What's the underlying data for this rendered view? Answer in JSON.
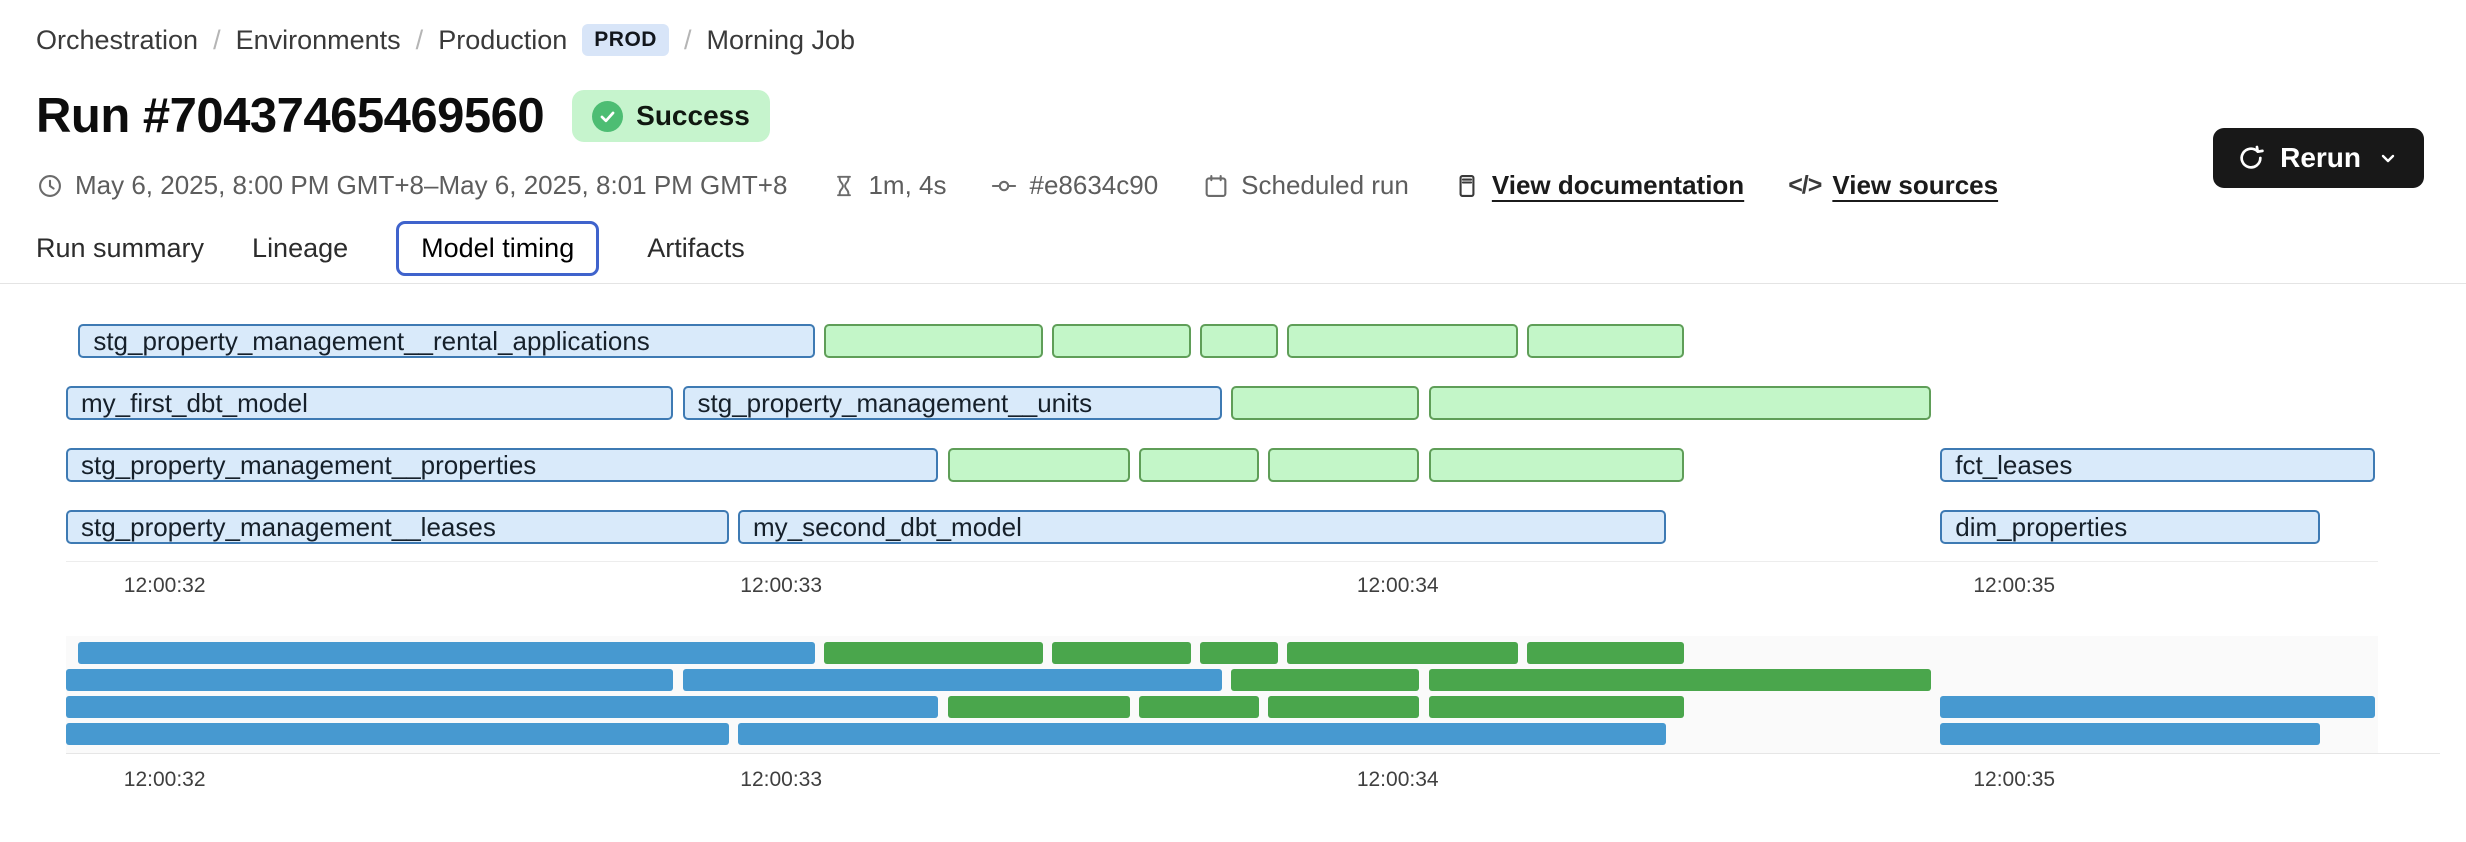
{
  "breadcrumb": {
    "items": [
      "Orchestration",
      "Environments",
      "Production",
      "Morning Job"
    ],
    "env_badge": "PROD",
    "separator": "/"
  },
  "header": {
    "title": "Run #70437465469560",
    "status_badge": "Success"
  },
  "toolbar": {
    "rerun_label": "Rerun"
  },
  "meta": {
    "time_range": "May 6, 2025, 8:00 PM GMT+8–May 6, 2025, 8:01 PM GMT+8",
    "duration": "1m, 4s",
    "commit": "#e8634c90",
    "trigger": "Scheduled run",
    "doc_link": "View documentation",
    "sources_link": "View sources",
    "code_glyph": "</>"
  },
  "tabs": [
    {
      "label": "Run summary",
      "active": false
    },
    {
      "label": "Lineage",
      "active": false
    },
    {
      "label": "Model timing",
      "active": true
    },
    {
      "label": "Artifacts",
      "active": false
    }
  ],
  "icons": {
    "clock-icon": "◷",
    "hourglass-icon": "⧖",
    "commit-icon": "-o-",
    "calendar-icon": "▦",
    "document-icon": "▤",
    "code-icon": "</>",
    "refresh-icon": "⟳",
    "chevron-down-icon": "∨",
    "check-icon": "✓"
  },
  "colors": {
    "blue_fill": "#d9eafa",
    "blue_border": "#3e7ab3",
    "green_fill": "#c3f6c8",
    "green_border": "#5f9e58",
    "mini_blue": "#4799d0",
    "mini_green": "#4aa64c",
    "success_bg": "#c6f4cd",
    "success_icon": "#4dbd73",
    "env_bg": "#d8e5f8",
    "tab_border": "#3f63cc",
    "rerun_bg": "#181818"
  },
  "chart_data": {
    "type": "gantt",
    "title": "Model timing",
    "x_axis": {
      "tick_labels": [
        "12:00:32",
        "12:00:33",
        "12:00:34",
        "12:00:35"
      ],
      "tick_seconds": [
        32,
        33,
        34,
        35
      ],
      "range_seconds": [
        31.84,
        35.59
      ],
      "unit": "time of day (h:mm:ss)"
    },
    "legend": {
      "blue": "model run (labeled)",
      "green": "subsequent task (unlabeled)"
    },
    "rows": [
      {
        "bars": [
          {
            "kind": "blue",
            "label": "stg_property_management__rental_applications",
            "start": 31.86,
            "end": 33.06
          },
          {
            "kind": "green",
            "start": 33.07,
            "end": 33.43
          },
          {
            "kind": "green",
            "start": 33.44,
            "end": 33.67
          },
          {
            "kind": "green",
            "start": 33.68,
            "end": 33.81
          },
          {
            "kind": "green",
            "start": 33.82,
            "end": 34.2
          },
          {
            "kind": "green",
            "start": 34.21,
            "end": 34.47
          }
        ]
      },
      {
        "bars": [
          {
            "kind": "blue",
            "label": "my_first_dbt_model",
            "start": 31.84,
            "end": 32.83
          },
          {
            "kind": "blue",
            "label": "stg_property_management__units",
            "start": 32.84,
            "end": 33.72
          },
          {
            "kind": "green",
            "start": 33.73,
            "end": 34.04
          },
          {
            "kind": "green",
            "start": 34.05,
            "end": 34.87
          }
        ]
      },
      {
        "bars": [
          {
            "kind": "blue",
            "label": "stg_property_management__properties",
            "start": 31.84,
            "end": 33.26
          },
          {
            "kind": "green",
            "start": 33.27,
            "end": 33.57
          },
          {
            "kind": "green",
            "start": 33.58,
            "end": 33.78
          },
          {
            "kind": "green",
            "start": 33.79,
            "end": 34.04
          },
          {
            "kind": "green",
            "start": 34.05,
            "end": 34.47
          },
          {
            "kind": "blue",
            "label": "fct_leases",
            "start": 34.88,
            "end": 35.59
          }
        ]
      },
      {
        "bars": [
          {
            "kind": "blue",
            "label": "stg_property_management__leases",
            "start": 31.84,
            "end": 32.92
          },
          {
            "kind": "blue",
            "label": "my_second_dbt_model",
            "start": 32.93,
            "end": 34.44
          },
          {
            "kind": "blue",
            "label": "dim_properties",
            "start": 34.88,
            "end": 35.5
          }
        ]
      }
    ],
    "minimap": {
      "present": true,
      "style": "solid-bars, same rows and time range"
    }
  }
}
